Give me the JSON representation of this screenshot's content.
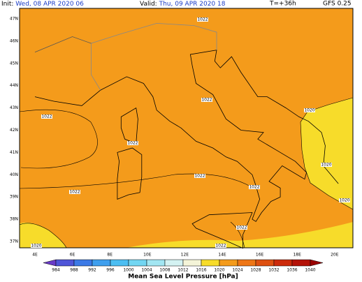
{
  "header": {
    "init_label": "Init:",
    "init_time": "Wed, 08 APR 2020  06",
    "valid_label": "Valid:",
    "valid_time": "Thu, 09 APR 2020  18",
    "lead": "T=+36h",
    "model": "GFS 0.25"
  },
  "map": {
    "lat_labels": [
      "47N",
      "46N",
      "45N",
      "44N",
      "43N",
      "42N",
      "41N",
      "40N",
      "39N",
      "38N",
      "37N"
    ],
    "lon_labels": [
      "4E",
      "6E",
      "8E",
      "10E",
      "12E",
      "14E",
      "16E",
      "18E",
      "20E"
    ],
    "isobar_labels": [
      "1022",
      "1022",
      "1022",
      "1022",
      "1022",
      "1022",
      "1022",
      "1022",
      "1022",
      "1020",
      "1020",
      "1020",
      "1020"
    ]
  },
  "colorbar": {
    "title": "Mean Sea Level Pressure [hPa]",
    "levels": [
      984,
      988,
      992,
      996,
      1000,
      1004,
      1008,
      1012,
      1016,
      1020,
      1024,
      1028,
      1032,
      1036,
      1040
    ],
    "colors": [
      "#6a3cc8",
      "#4f55d8",
      "#3c7ae6",
      "#3f9fee",
      "#4cbef2",
      "#72d6f2",
      "#a2e6f2",
      "#d4f2f2",
      "#f4f4d8",
      "#f7dc2a",
      "#f49b1b",
      "#ee7616",
      "#de5010",
      "#cc2a0a",
      "#b41208",
      "#9a0000"
    ]
  }
}
